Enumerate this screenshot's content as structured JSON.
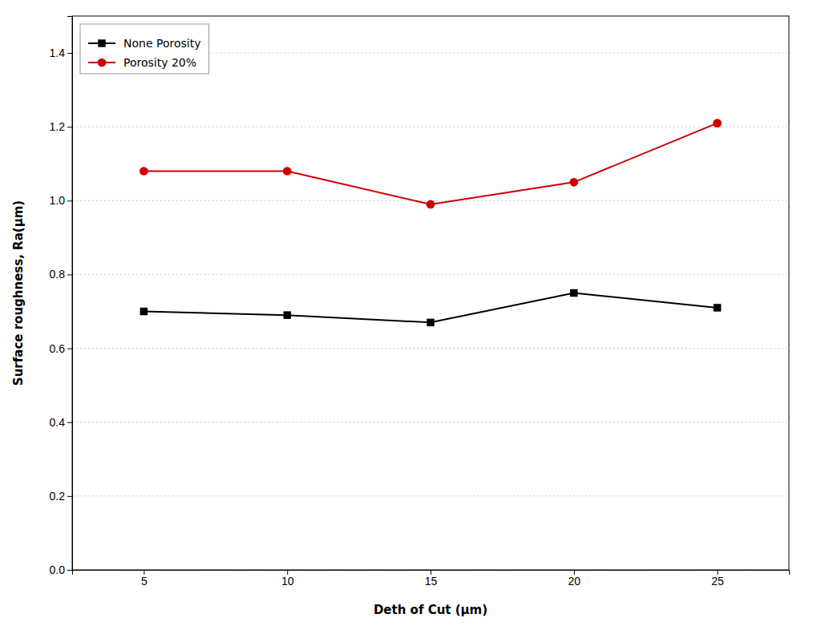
{
  "chart_data": {
    "type": "line",
    "x": [
      5,
      10,
      15,
      20,
      25
    ],
    "series": [
      {
        "name": "None Porosity",
        "color": "#000000",
        "marker": "square",
        "values": [
          0.7,
          0.69,
          0.67,
          0.75,
          0.71
        ]
      },
      {
        "name": "Porosity 20%",
        "color": "#cc0000",
        "marker": "circle",
        "values": [
          1.08,
          1.08,
          0.99,
          1.05,
          1.21
        ]
      }
    ],
    "xlabel": "Deth of Cut (μm)",
    "ylabel": "Surface roughness, Ra(μm)",
    "xlim": [
      2.5,
      27.5
    ],
    "ylim": [
      0.0,
      1.5
    ],
    "xticks": [
      5,
      10,
      15,
      20,
      25
    ],
    "yticks": [
      {
        "value": 0.0,
        "label": "0.0"
      },
      0.2,
      0.4,
      0.6,
      0.8,
      {
        "value": 1.0,
        "label": "1.0"
      },
      1.2,
      1.4
    ],
    "grid": true,
    "legend": "upper left"
  }
}
